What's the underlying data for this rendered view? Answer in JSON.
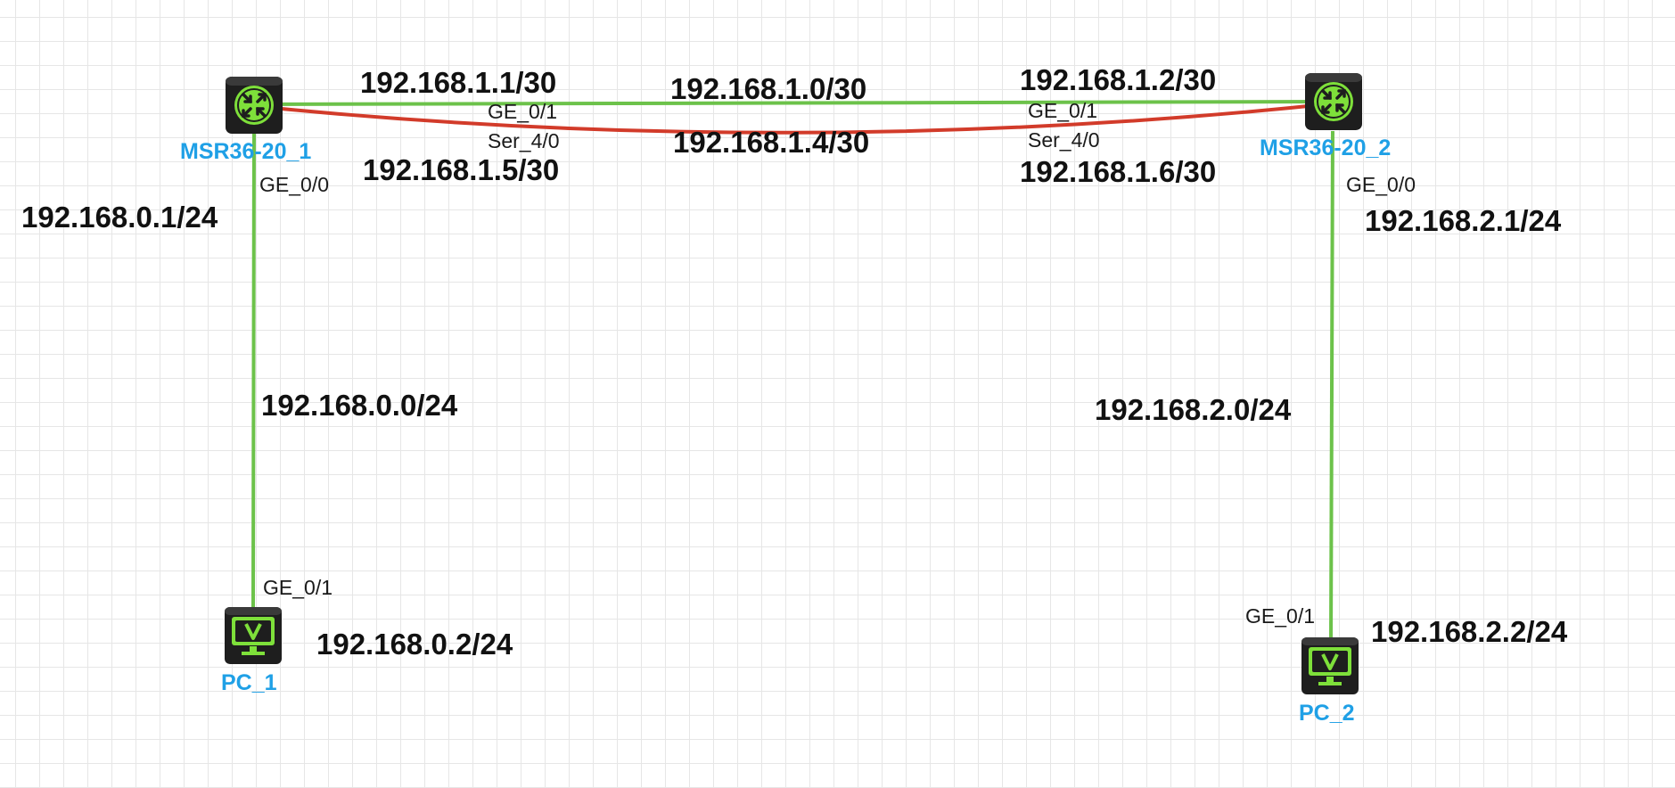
{
  "colors": {
    "ethernet_link": "#6cc24a",
    "serial_link": "#d23b2a",
    "device_label": "#1fa0e6",
    "device_body": "#1e1e1e",
    "device_accent": "#7ee03a"
  },
  "devices": {
    "router1": {
      "name": "MSR36-20_1",
      "icon": "router-icon"
    },
    "router2": {
      "name": "MSR36-20_2",
      "icon": "router-icon"
    },
    "pc1": {
      "name": "PC_1",
      "icon": "pc-icon"
    },
    "pc2": {
      "name": "PC_2",
      "icon": "pc-icon"
    }
  },
  "interfaces": {
    "r1_ge01": "GE_0/1",
    "r1_ser40": "Ser_4/0",
    "r1_ge00": "GE_0/0",
    "r2_ge01": "GE_0/1",
    "r2_ser40": "Ser_4/0",
    "r2_ge00": "GE_0/0",
    "pc1_ge01": "GE_0/1",
    "pc2_ge01": "GE_0/1"
  },
  "addresses": {
    "r1_ge01_ip": "192.168.1.1/30",
    "r2_ge01_ip": "192.168.1.2/30",
    "wan_eth_net": "192.168.1.0/30",
    "wan_serial_net": "192.168.1.4/30",
    "r1_ser_ip": "192.168.1.5/30",
    "r2_ser_ip": "192.168.1.6/30",
    "r1_ge00_ip": "192.168.0.1/24",
    "r2_ge00_ip": "192.168.2.1/24",
    "lan1_net": "192.168.0.0/24",
    "lan2_net": "192.168.2.0/24",
    "pc1_ip": "192.168.0.2/24",
    "pc2_ip": "192.168.2.2/24"
  }
}
